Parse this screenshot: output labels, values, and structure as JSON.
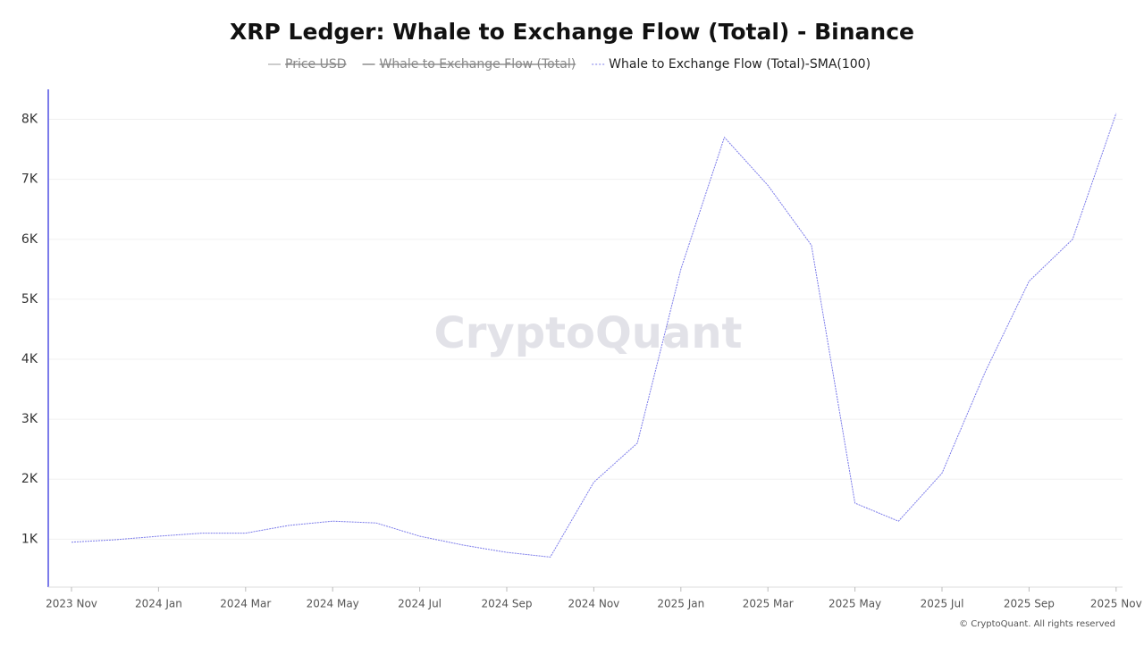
{
  "chart_data": {
    "type": "line",
    "title": "XRP Ledger: Whale to Exchange Flow (Total) - Binance",
    "watermark": "CryptoQuant",
    "footer": "© CryptoQuant. All rights reserved",
    "legend": [
      {
        "name": "Price USD",
        "color": "#999999",
        "hidden": true
      },
      {
        "name": "Whale to Exchange Flow (Total)",
        "color": "#555555",
        "hidden": true
      },
      {
        "name": "Whale to Exchange Flow (Total)-SMA(100)",
        "color": "#7b7bea",
        "hidden": false
      }
    ],
    "x": [
      "2023-11",
      "2023-12",
      "2024-01",
      "2024-02",
      "2024-03",
      "2024-04",
      "2024-05",
      "2024-06",
      "2024-07",
      "2024-08",
      "2024-09",
      "2024-10",
      "2024-11",
      "2024-12",
      "2025-01",
      "2025-02",
      "2025-03",
      "2025-04",
      "2025-05",
      "2025-06",
      "2025-07",
      "2025-08",
      "2025-09",
      "2025-10",
      "2025-11"
    ],
    "series": [
      {
        "name": "Whale to Exchange Flow (Total)-SMA(100)",
        "color": "#7b7bea",
        "values": [
          950,
          990,
          1050,
          1100,
          1100,
          1230,
          1300,
          1270,
          1050,
          900,
          780,
          700,
          1950,
          2600,
          5500,
          7700,
          6900,
          5900,
          1600,
          1300,
          2100,
          3800,
          5300,
          6000,
          8100
        ]
      }
    ],
    "xticks": [
      {
        "value": "2023-11",
        "label": "2023 Nov"
      },
      {
        "value": "2024-01",
        "label": "2024 Jan"
      },
      {
        "value": "2024-03",
        "label": "2024 Mar"
      },
      {
        "value": "2024-05",
        "label": "2024 May"
      },
      {
        "value": "2024-07",
        "label": "2024 Jul"
      },
      {
        "value": "2024-09",
        "label": "2024 Sep"
      },
      {
        "value": "2024-11",
        "label": "2024 Nov"
      },
      {
        "value": "2025-01",
        "label": "2025 Jan"
      },
      {
        "value": "2025-03",
        "label": "2025 Mar"
      },
      {
        "value": "2025-05",
        "label": "2025 May"
      },
      {
        "value": "2025-07",
        "label": "2025 Jul"
      },
      {
        "value": "2025-09",
        "label": "2025 Sep"
      },
      {
        "value": "2025-11",
        "label": "2025 Nov"
      }
    ],
    "ylim": [
      200,
      8500
    ],
    "yticks": [
      {
        "value": 1000,
        "label": "1K"
      },
      {
        "value": 2000,
        "label": "2K"
      },
      {
        "value": 3000,
        "label": "3K"
      },
      {
        "value": 4000,
        "label": "4K"
      },
      {
        "value": 5000,
        "label": "5K"
      },
      {
        "value": 6000,
        "label": "6K"
      },
      {
        "value": 7000,
        "label": "7K"
      },
      {
        "value": 8000,
        "label": "8K"
      }
    ],
    "grid": true
  }
}
